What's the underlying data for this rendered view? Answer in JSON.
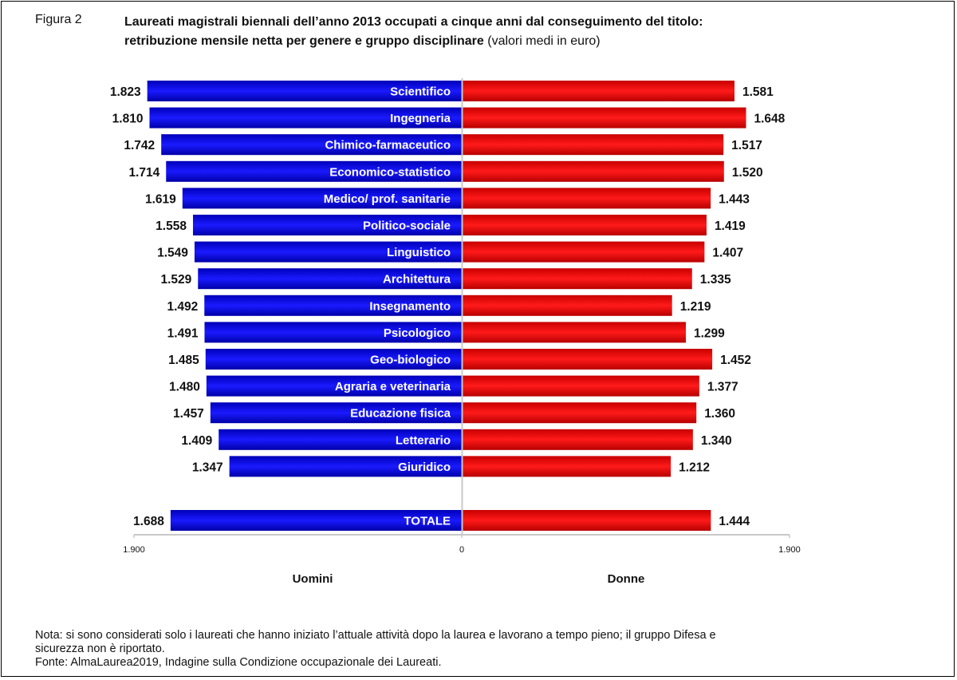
{
  "figure": {
    "label": "Figura 2",
    "title_line1": "Laureati magistrali biennali dell’anno 2013 occupati a cinque anni dal conseguimento del titolo:",
    "title_line2": "retribuzione mensile netta per genere e gruppo disciplinare",
    "title_unit": "(valori medi in euro)"
  },
  "chart_data": {
    "type": "bar",
    "orientation": "horizontal-butterfly",
    "categories": [
      "Scientifico",
      "Ingegneria",
      "Chimico-farmaceutico",
      "Economico-statistico",
      "Medico/ prof. sanitarie",
      "Politico-sociale",
      "Linguistico",
      "Architettura",
      "Insegnamento",
      "Psicologico",
      "Geo-biologico",
      "Agraria e veterinaria",
      "Educazione fisica",
      "Letterario",
      "Giuridico",
      "TOTALE"
    ],
    "series": [
      {
        "name": "Uomini",
        "color": "#1010d8",
        "side": "left",
        "values": [
          1823,
          1810,
          1742,
          1714,
          1619,
          1558,
          1549,
          1529,
          1492,
          1491,
          1485,
          1480,
          1457,
          1409,
          1347,
          1688
        ],
        "labels": [
          "1.823",
          "1.810",
          "1.742",
          "1.714",
          "1.619",
          "1.558",
          "1.549",
          "1.529",
          "1.492",
          "1.491",
          "1.485",
          "1.480",
          "1.457",
          "1.409",
          "1.347",
          "1.688"
        ]
      },
      {
        "name": "Donne",
        "color": "#e21010",
        "side": "right",
        "values": [
          1581,
          1648,
          1517,
          1520,
          1443,
          1419,
          1407,
          1335,
          1219,
          1299,
          1452,
          1377,
          1360,
          1340,
          1212,
          1444
        ],
        "labels": [
          "1.581",
          "1.648",
          "1.517",
          "1.520",
          "1.443",
          "1.419",
          "1.407",
          "1.335",
          "1.219",
          "1.299",
          "1.452",
          "1.377",
          "1.360",
          "1.340",
          "1.212",
          "1.444"
        ]
      }
    ],
    "xlim": [
      -1900,
      1900
    ],
    "x_ticks": [
      {
        "value": -1900,
        "label": "1.900"
      },
      {
        "value": 0,
        "label": "0"
      },
      {
        "value": 1900,
        "label": "1.900"
      }
    ],
    "xlabel_left": "Uomini",
    "xlabel_right": "Donne",
    "grid": false,
    "legend": "none"
  },
  "note": {
    "line1": "Nota: si sono considerati solo i laureati che hanno iniziato l’attuale attività dopo la laurea e lavorano a tempo pieno; il gruppo Difesa e",
    "line2": "sicurezza non è riportato.",
    "source": "Fonte: AlmaLaurea2019, Indagine sulla Condizione occupazionale dei Laureati."
  }
}
